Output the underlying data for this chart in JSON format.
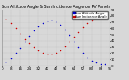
{
  "title": "Sun Altitude Angle & Sun Incidence Angle on PV Panels",
  "legend_labels": [
    "Sun Altitude Angle",
    "Sun Incidence Angle"
  ],
  "legend_colors": [
    "#0000cc",
    "#cc0000"
  ],
  "bg_color": "#d8d8d8",
  "plot_bg_color": "#d8d8d8",
  "grid_color": "#aaaaaa",
  "ylim": [
    0,
    90
  ],
  "xlim": [
    0,
    96
  ],
  "sun_altitude_x": [
    3,
    8,
    12,
    16,
    20,
    24,
    28,
    32,
    36,
    40,
    44,
    48,
    52,
    56,
    60,
    64,
    68,
    72,
    76,
    80,
    84,
    88,
    92
  ],
  "sun_altitude_y": [
    5,
    12,
    20,
    28,
    38,
    47,
    56,
    63,
    68,
    72,
    73,
    71,
    66,
    58,
    49,
    39,
    29,
    20,
    13,
    8,
    5,
    3,
    2
  ],
  "sun_incidence_x": [
    3,
    8,
    12,
    16,
    20,
    24,
    28,
    32,
    36,
    40,
    44,
    48,
    52,
    56,
    60,
    64,
    68,
    72,
    76,
    80,
    84,
    88,
    92
  ],
  "sun_incidence_y": [
    75,
    68,
    60,
    52,
    43,
    36,
    29,
    24,
    20,
    18,
    18,
    20,
    25,
    31,
    38,
    46,
    54,
    62,
    68,
    73,
    77,
    80,
    82
  ],
  "title_fontsize": 3.5,
  "tick_fontsize": 3.0,
  "legend_fontsize": 2.8,
  "dot_size": 1.2,
  "yticks": [
    0,
    10,
    20,
    30,
    40,
    50,
    60,
    70,
    80,
    90
  ],
  "xtick_step": 8
}
